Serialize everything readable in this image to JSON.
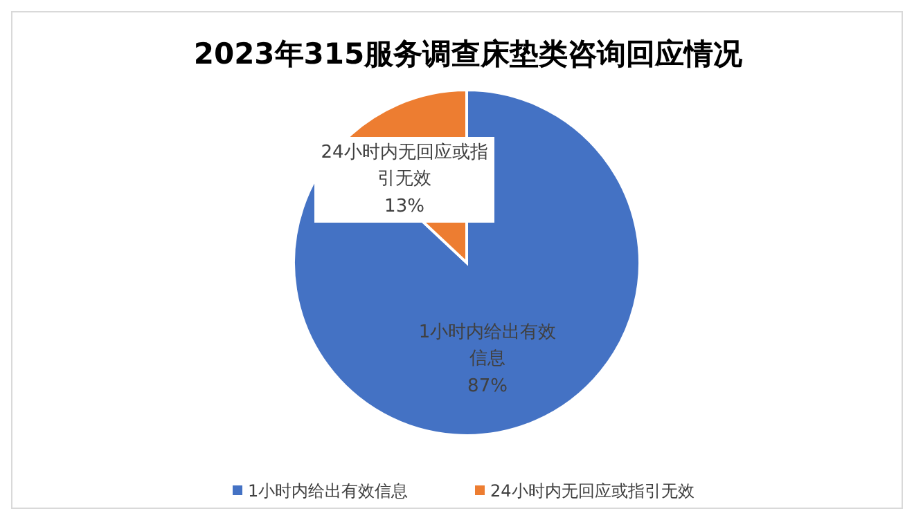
{
  "chart_data": {
    "type": "pie",
    "title": "2023年315服务调查床垫类咨询回应情况",
    "categories": [
      "1小时内给出有效信息",
      "24小时内无回应或指引无效"
    ],
    "values": [
      87,
      13
    ],
    "value_labels": [
      "87%",
      "13%"
    ],
    "colors": [
      "#4472c4",
      "#ed7d31"
    ],
    "data_labels": true,
    "legend": "bottom"
  }
}
